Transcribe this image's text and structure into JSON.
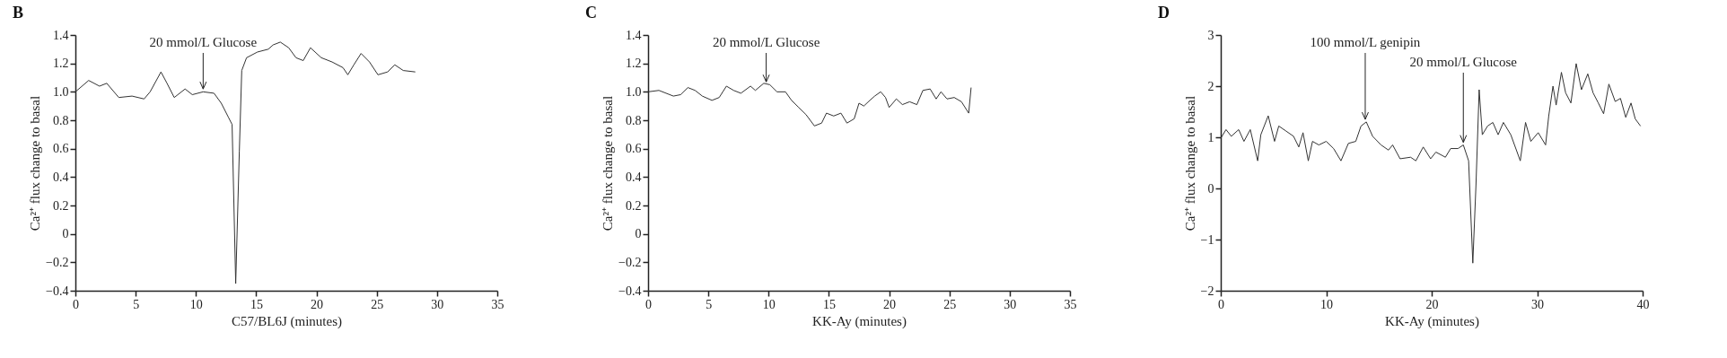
{
  "chart_data": [
    {
      "type": "line",
      "title": "B",
      "xlabel": "C57/BL6J (minutes)",
      "ylabel": "Ca²⁺ flux change to basal",
      "xlim": [
        0,
        35
      ],
      "xticks": [
        0,
        5,
        10,
        15,
        20,
        25,
        30,
        35
      ],
      "ylim": [
        -0.4,
        1.4
      ],
      "yticks": [
        {
          "value": -0.4,
          "label": "−0.4"
        },
        {
          "value": -0.2,
          "label": "−0.2"
        },
        0,
        0.2,
        0.4,
        0.6,
        0.8,
        {
          "value": 1,
          "label": "1.0"
        },
        1.2,
        1.4
      ],
      "annotations": [
        {
          "text": "20 mmol/L Glucose",
          "x": 10.6,
          "y": 1.02
        }
      ],
      "series": [
        {
          "color": "#333333",
          "x": [
            0,
            1.1,
            2,
            2.6,
            3.6,
            4.7,
            5.7,
            6.2,
            7.1,
            7.6,
            8.2,
            9.1,
            9.7,
            10.6,
            11.5,
            12.1,
            12.7,
            13.0,
            13.3,
            13.6,
            13.8,
            14.2,
            15.1,
            16.0,
            16.4,
            17.0,
            17.7,
            18.3,
            18.9,
            19.5,
            20.4,
            21.3,
            22.2,
            22.6,
            23.1,
            23.7,
            24.4,
            25.1,
            25.9,
            26.5,
            27.2,
            28.2
          ],
          "values": [
            1.0,
            1.08,
            1.04,
            1.06,
            0.96,
            0.97,
            0.95,
            1.0,
            1.14,
            1.06,
            0.96,
            1.02,
            0.98,
            1.0,
            0.99,
            0.92,
            0.82,
            0.77,
            -0.35,
            0.58,
            1.15,
            1.24,
            1.28,
            1.3,
            1.33,
            1.35,
            1.31,
            1.24,
            1.22,
            1.31,
            1.24,
            1.21,
            1.17,
            1.12,
            1.19,
            1.27,
            1.21,
            1.12,
            1.14,
            1.19,
            1.15,
            1.14
          ]
        }
      ]
    },
    {
      "type": "line",
      "title": "C",
      "xlabel": "KK-Ay (minutes)",
      "ylabel": "Ca²⁺ flux change to basal",
      "xlim": [
        0,
        35
      ],
      "xticks": [
        0,
        5,
        10,
        15,
        20,
        25,
        30,
        35
      ],
      "ylim": [
        -0.4,
        1.4
      ],
      "yticks": [
        {
          "value": -0.4,
          "label": "−0.4"
        },
        {
          "value": -0.2,
          "label": "−0.2"
        },
        0,
        0.2,
        0.4,
        0.6,
        0.8,
        {
          "value": 1,
          "label": "1.0"
        },
        1.2,
        1.4
      ],
      "annotations": [
        {
          "text": "20 mmol/L Glucose",
          "x": 9.8,
          "y": 1.07
        }
      ],
      "series": [
        {
          "color": "#333333",
          "x": [
            0,
            0.9,
            2.1,
            2.7,
            3.3,
            3.9,
            4.5,
            5.3,
            5.9,
            6.5,
            7.1,
            7.7,
            8.5,
            8.9,
            9.6,
            10.1,
            10.7,
            11.4,
            11.9,
            12.5,
            13.1,
            13.8,
            14.4,
            14.8,
            15.4,
            16.0,
            16.5,
            17.1,
            17.5,
            17.9,
            18.4,
            18.8,
            19.3,
            19.7,
            20.0,
            20.6,
            21.1,
            21.7,
            22.3,
            22.8,
            23.4,
            23.9,
            24.3,
            24.8,
            25.4,
            26.0,
            26.6,
            26.8
          ],
          "values": [
            1.0,
            1.01,
            0.97,
            0.98,
            1.03,
            1.01,
            0.97,
            0.94,
            0.96,
            1.04,
            1.01,
            0.99,
            1.04,
            1.01,
            1.06,
            1.05,
            1.0,
            1.0,
            0.94,
            0.89,
            0.84,
            0.76,
            0.78,
            0.85,
            0.83,
            0.85,
            0.78,
            0.81,
            0.92,
            0.9,
            0.94,
            0.97,
            1.0,
            0.96,
            0.89,
            0.95,
            0.91,
            0.93,
            0.91,
            1.01,
            1.02,
            0.95,
            1.0,
            0.95,
            0.96,
            0.93,
            0.85,
            1.03
          ]
        }
      ]
    },
    {
      "type": "line",
      "title": "D",
      "xlabel": "KK-Ay (minutes)",
      "ylabel": "Ca²⁺ flux change to basal",
      "xlim": [
        0,
        40
      ],
      "xticks": [
        0,
        10,
        20,
        30,
        40
      ],
      "ylim": [
        -2,
        3
      ],
      "yticks": [
        {
          "value": -2,
          "label": "−2"
        },
        {
          "value": -1,
          "label": "−1"
        },
        0,
        1,
        2,
        3
      ],
      "annotations": [
        {
          "text": "100 mmol/L genipin",
          "x": 13.7,
          "y": 1.35
        },
        {
          "text": "20 mmol/L Glucose",
          "x": 23.0,
          "y": 0.9
        }
      ],
      "series": [
        {
          "color": "#333333",
          "x": [
            0,
            0.5,
            1.0,
            1.7,
            2.2,
            2.8,
            3.5,
            3.8,
            4.5,
            5.1,
            5.5,
            6.2,
            6.9,
            7.4,
            7.8,
            8.3,
            8.7,
            9.3,
            10.0,
            10.7,
            11.4,
            12.1,
            12.8,
            13.3,
            13.8,
            14.4,
            15.2,
            15.9,
            16.3,
            17.0,
            18.0,
            18.5,
            19.2,
            19.9,
            20.4,
            21.3,
            21.8,
            22.5,
            23.0,
            23.5,
            23.9,
            24.2,
            24.5,
            24.8,
            25.3,
            25.8,
            26.3,
            26.8,
            27.5,
            28.4,
            28.9,
            29.4,
            30.1,
            30.8,
            31.1,
            31.5,
            31.8,
            32.3,
            32.7,
            33.2,
            33.7,
            34.2,
            34.8,
            35.3,
            35.8,
            36.3,
            36.8,
            37.4,
            37.9,
            38.4,
            38.9,
            39.3,
            39.8
          ],
          "values": [
            0.98,
            1.15,
            1.02,
            1.15,
            0.92,
            1.15,
            0.54,
            1.05,
            1.42,
            0.92,
            1.22,
            1.12,
            1.02,
            0.81,
            1.09,
            0.54,
            0.92,
            0.85,
            0.92,
            0.78,
            0.54,
            0.88,
            0.92,
            1.22,
            1.3,
            1.02,
            0.85,
            0.75,
            0.85,
            0.58,
            0.61,
            0.54,
            0.81,
            0.58,
            0.71,
            0.61,
            0.78,
            0.78,
            0.85,
            0.54,
            -1.46,
            0.07,
            1.93,
            1.05,
            1.22,
            1.29,
            1.05,
            1.29,
            1.05,
            0.54,
            1.29,
            0.92,
            1.09,
            0.85,
            1.42,
            2.0,
            1.63,
            2.27,
            1.87,
            1.67,
            2.44,
            1.93,
            2.24,
            1.87,
            1.67,
            1.46,
            2.04,
            1.7,
            1.76,
            1.39,
            1.67,
            1.36,
            1.22
          ]
        }
      ]
    }
  ]
}
